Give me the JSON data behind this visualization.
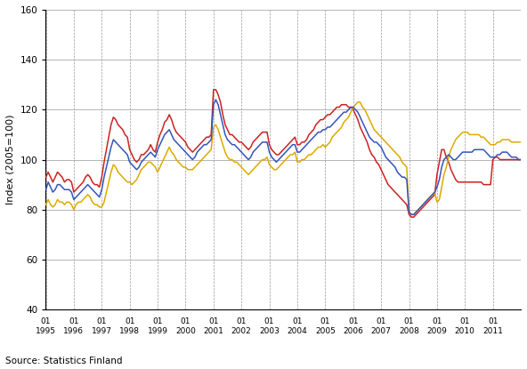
{
  "ylabel": "Index (2005=100)",
  "source": "Source: Statistics Finland",
  "ylim": [
    40,
    160
  ],
  "yticks": [
    40,
    60,
    80,
    100,
    120,
    140,
    160
  ],
  "start_year": 1995,
  "colors": {
    "total": "#3355BB",
    "domestic": "#DDAA00",
    "export": "#CC2222"
  },
  "line_width": 1.1,
  "total_turnover": [
    88,
    91,
    89,
    87,
    88,
    90,
    90,
    89,
    88,
    88,
    88,
    87,
    84,
    85,
    86,
    87,
    88,
    89,
    90,
    89,
    88,
    87,
    86,
    85,
    88,
    93,
    97,
    101,
    105,
    108,
    107,
    106,
    105,
    104,
    103,
    102,
    99,
    98,
    97,
    96,
    97,
    99,
    100,
    101,
    102,
    103,
    102,
    101,
    104,
    106,
    108,
    110,
    111,
    112,
    110,
    108,
    107,
    106,
    105,
    104,
    103,
    102,
    101,
    100,
    101,
    103,
    104,
    105,
    106,
    106,
    107,
    108,
    122,
    124,
    122,
    118,
    114,
    110,
    108,
    107,
    106,
    106,
    105,
    104,
    103,
    102,
    101,
    100,
    101,
    103,
    104,
    105,
    106,
    107,
    107,
    107,
    103,
    101,
    100,
    99,
    100,
    101,
    102,
    103,
    104,
    105,
    106,
    106,
    103,
    103,
    104,
    105,
    106,
    107,
    108,
    109,
    110,
    111,
    111,
    112,
    112,
    113,
    113,
    114,
    115,
    116,
    117,
    118,
    119,
    119,
    120,
    121,
    121,
    120,
    119,
    117,
    115,
    113,
    111,
    109,
    108,
    107,
    107,
    106,
    105,
    103,
    101,
    100,
    99,
    98,
    97,
    95,
    94,
    93,
    93,
    92,
    79,
    78,
    78,
    79,
    80,
    81,
    82,
    83,
    84,
    85,
    86,
    87,
    89,
    92,
    97,
    100,
    101,
    102,
    101,
    100,
    100,
    101,
    102,
    103,
    103,
    103,
    103,
    103,
    104,
    104,
    104,
    104,
    104,
    103,
    102,
    101,
    101,
    101,
    102,
    102,
    103,
    103,
    103,
    102,
    101,
    101,
    101,
    100,
    100
  ],
  "domestic_turnover": [
    82,
    84,
    82,
    81,
    82,
    84,
    83,
    83,
    82,
    83,
    83,
    82,
    80,
    82,
    83,
    83,
    84,
    85,
    86,
    85,
    83,
    82,
    82,
    81,
    81,
    83,
    87,
    91,
    95,
    98,
    97,
    95,
    94,
    93,
    92,
    91,
    91,
    90,
    91,
    92,
    94,
    96,
    97,
    98,
    99,
    99,
    98,
    97,
    95,
    97,
    99,
    101,
    103,
    105,
    103,
    102,
    100,
    99,
    98,
    97,
    97,
    96,
    96,
    96,
    97,
    98,
    99,
    100,
    101,
    102,
    103,
    104,
    113,
    114,
    112,
    109,
    106,
    103,
    101,
    100,
    100,
    99,
    99,
    98,
    97,
    96,
    95,
    94,
    95,
    96,
    97,
    98,
    99,
    100,
    100,
    101,
    98,
    97,
    96,
    96,
    97,
    98,
    99,
    100,
    101,
    102,
    102,
    103,
    99,
    99,
    100,
    100,
    101,
    102,
    102,
    103,
    104,
    105,
    105,
    106,
    105,
    106,
    107,
    109,
    110,
    111,
    112,
    113,
    115,
    116,
    117,
    119,
    121,
    122,
    123,
    123,
    121,
    120,
    118,
    116,
    114,
    112,
    111,
    110,
    109,
    108,
    107,
    106,
    105,
    104,
    103,
    102,
    101,
    99,
    98,
    97,
    79,
    78,
    78,
    79,
    80,
    81,
    82,
    83,
    84,
    85,
    86,
    87,
    83,
    84,
    89,
    94,
    97,
    101,
    104,
    106,
    108,
    109,
    110,
    111,
    111,
    111,
    110,
    110,
    110,
    110,
    110,
    109,
    109,
    108,
    107,
    106,
    106,
    106,
    107,
    107,
    108,
    108,
    108,
    108,
    107,
    107,
    107,
    107,
    107
  ],
  "export_turnover": [
    93,
    95,
    93,
    91,
    93,
    95,
    94,
    93,
    91,
    92,
    92,
    91,
    87,
    88,
    89,
    90,
    91,
    93,
    94,
    93,
    91,
    90,
    90,
    89,
    93,
    99,
    104,
    109,
    114,
    117,
    116,
    114,
    113,
    112,
    110,
    109,
    104,
    102,
    100,
    99,
    100,
    102,
    102,
    103,
    104,
    106,
    104,
    103,
    107,
    110,
    112,
    115,
    116,
    118,
    116,
    113,
    111,
    110,
    109,
    108,
    107,
    105,
    104,
    103,
    104,
    105,
    106,
    107,
    108,
    109,
    109,
    110,
    128,
    128,
    126,
    123,
    118,
    114,
    112,
    110,
    110,
    109,
    108,
    107,
    107,
    106,
    105,
    104,
    105,
    107,
    108,
    109,
    110,
    111,
    111,
    111,
    106,
    104,
    103,
    102,
    102,
    103,
    104,
    105,
    106,
    107,
    108,
    109,
    106,
    106,
    107,
    107,
    108,
    110,
    111,
    112,
    114,
    115,
    116,
    116,
    117,
    118,
    118,
    119,
    120,
    121,
    121,
    122,
    122,
    122,
    121,
    121,
    120,
    118,
    116,
    113,
    111,
    109,
    107,
    104,
    102,
    101,
    99,
    98,
    96,
    94,
    92,
    90,
    89,
    88,
    87,
    86,
    85,
    84,
    83,
    82,
    78,
    77,
    77,
    78,
    79,
    80,
    81,
    82,
    83,
    84,
    85,
    86,
    94,
    99,
    104,
    104,
    101,
    99,
    96,
    94,
    92,
    91,
    91,
    91,
    91,
    91,
    91,
    91,
    91,
    91,
    91,
    91,
    90,
    90,
    90,
    90,
    100,
    101,
    101,
    100,
    100,
    100,
    100,
    100,
    100,
    100,
    100,
    100,
    100
  ]
}
